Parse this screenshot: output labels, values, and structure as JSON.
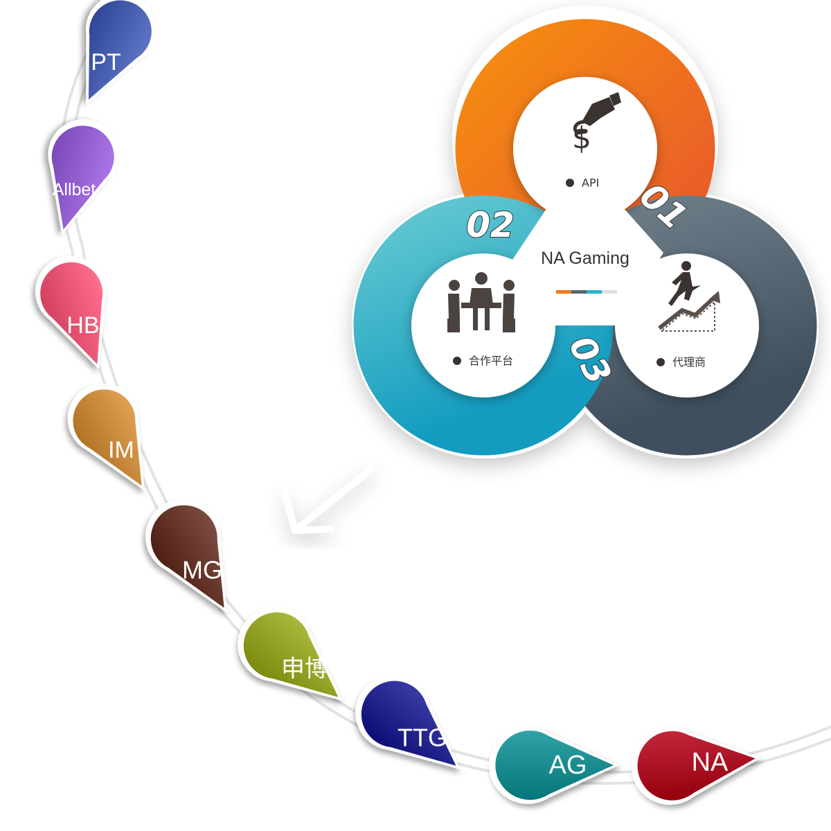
{
  "hub": {
    "title": "NA Gaming",
    "items": [
      {
        "number": "01",
        "label": "API",
        "color": "#f27a1a",
        "icon": "hand-dollar-icon"
      },
      {
        "number": "02",
        "label": "合作平台",
        "color": "#2bb3c8",
        "icon": "meeting-icon"
      },
      {
        "number": "03",
        "label": "代理商",
        "color": "#556674",
        "icon": "growth-runner-icon"
      }
    ],
    "accent_stripe": [
      "#f27a1a",
      "#556674",
      "#2bb3c8",
      "#e0e0e0"
    ]
  },
  "providers": [
    {
      "label": "PT",
      "color": "#3f56a6"
    },
    {
      "label": "Allbet",
      "color": "#8b57c9"
    },
    {
      "label": "HB",
      "color": "#e2506f"
    },
    {
      "label": "IM",
      "color": "#c08336"
    },
    {
      "label": "MG",
      "color": "#5e2e22"
    },
    {
      "label": "申博",
      "color": "#8b9a1c"
    },
    {
      "label": "TTG",
      "color": "#1c1c86"
    },
    {
      "label": "AG",
      "color": "#138487"
    },
    {
      "label": "NA",
      "color": "#a3081c"
    }
  ]
}
